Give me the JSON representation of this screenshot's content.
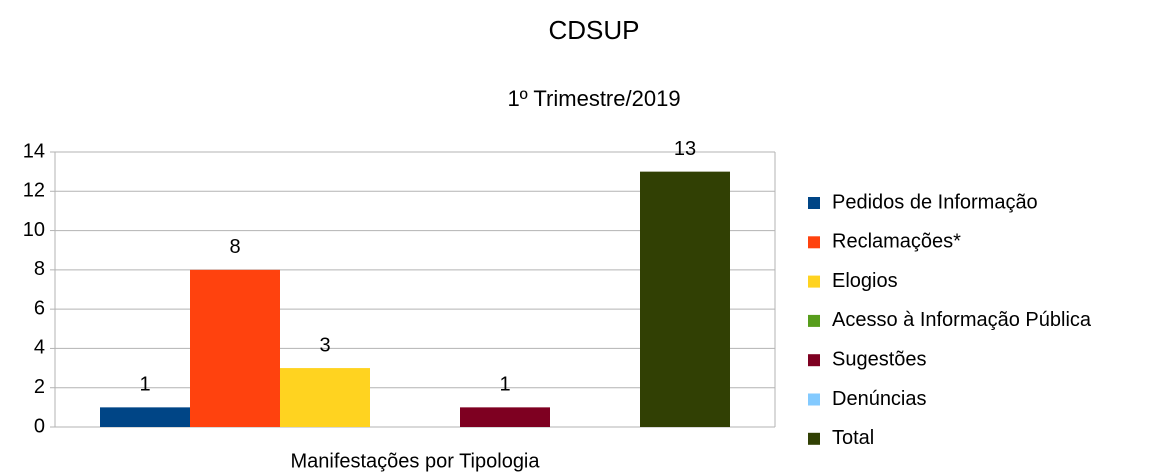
{
  "chart_data": {
    "type": "bar",
    "title": "CDSUP",
    "subtitle": "1º Trimestre/2019",
    "categories": [
      "Manifestações por Tipologia"
    ],
    "series": [
      {
        "name": "Pedidos de Informação",
        "color": "#004586",
        "values": [
          1
        ]
      },
      {
        "name": "Reclamações*",
        "color": "#ff420e",
        "values": [
          8
        ]
      },
      {
        "name": "Elogios",
        "color": "#ffd320",
        "values": [
          3
        ]
      },
      {
        "name": "Acesso à Informação Pública",
        "color": "#579d1c",
        "values": [
          0
        ]
      },
      {
        "name": "Sugestões",
        "color": "#7e0021",
        "values": [
          1
        ]
      },
      {
        "name": "Denúncias",
        "color": "#83caff",
        "values": [
          0
        ]
      },
      {
        "name": "Total",
        "color": "#314004",
        "values": [
          13
        ]
      }
    ],
    "ylim": [
      0,
      14
    ],
    "yticks": [
      0,
      2,
      4,
      6,
      8,
      10,
      12,
      14
    ],
    "grid": true,
    "legend": "right"
  }
}
